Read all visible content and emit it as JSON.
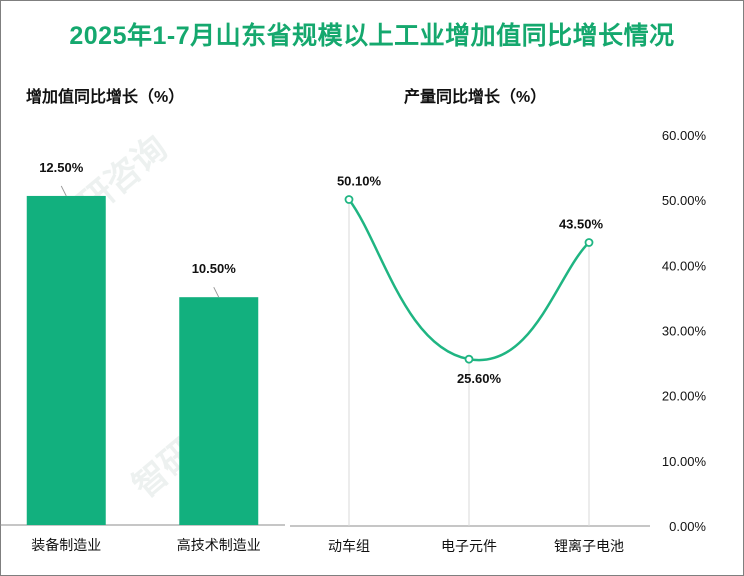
{
  "title": "2025年1-7月山东省规模以上工业增加值同比增长情况",
  "chart_data": [
    {
      "type": "bar",
      "title": "增加值同比增长（%）",
      "categories": [
        "装备制造业",
        "高技术制造业"
      ],
      "values": [
        12.5,
        10.5
      ],
      "data_labels": [
        "12.50%",
        "10.50%"
      ],
      "ylim": [
        6,
        14
      ],
      "color": "#12b07e"
    },
    {
      "type": "line",
      "title": "产量同比增长（%）",
      "categories": [
        "动车组",
        "电子元件",
        "锂离子电池"
      ],
      "values": [
        50.1,
        25.6,
        43.5
      ],
      "data_labels": [
        "50.10%",
        "25.60%",
        "43.50%"
      ],
      "ylim": [
        0,
        60
      ],
      "yticks": [
        "0.00%",
        "10.00%",
        "20.00%",
        "30.00%",
        "40.00%",
        "50.00%",
        "60.00%"
      ],
      "color": "#1fb582"
    }
  ]
}
